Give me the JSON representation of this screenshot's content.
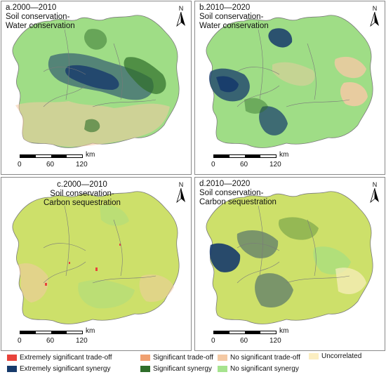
{
  "panels": [
    {
      "id": "a",
      "title_line1": "a.2000—2010",
      "title_line2": "Soil conservation-",
      "title_line3": "Water conservation"
    },
    {
      "id": "b",
      "title_line1": "b.2010—2020",
      "title_line2": "Soil conservation-",
      "title_line3": "Water conservation"
    },
    {
      "id": "c",
      "title_line1": "c.2000—2010",
      "title_line2": "Soil conservation-",
      "title_line3": "Carbon sequestration"
    },
    {
      "id": "d",
      "title_line1": "d.2010—2020",
      "title_line2": "Soil conservation-",
      "title_line3": "Carbon sequestration"
    }
  ],
  "north_label": "N",
  "scale": {
    "unit": "km",
    "ticks": [
      "0",
      "60",
      "120"
    ]
  },
  "legend": [
    {
      "label": "Extremely significant trade-off",
      "color": "#e8433b"
    },
    {
      "label": "Significant trade-off",
      "color": "#f0a070"
    },
    {
      "label": "No significant trade-off",
      "color": "#f4c9a4"
    },
    {
      "label": "Uncorrelated",
      "color": "#fbeec1"
    },
    {
      "label": "Extremely significant synergy",
      "color": "#163a6b"
    },
    {
      "label": "Significant synergy",
      "color": "#2f6e2a"
    },
    {
      "label": "No significant synergy",
      "color": "#a6e38e"
    }
  ],
  "map_colors": {
    "base_green": "#9fdd86",
    "dark_blue": "#163a6b",
    "dark_green": "#2f6e2a",
    "light_orange": "#f4c9a4",
    "yellow_green": "#cde06a",
    "uncorrelated": "#fbeec1",
    "red": "#e8433b",
    "boundary": "#7a7a7a"
  }
}
